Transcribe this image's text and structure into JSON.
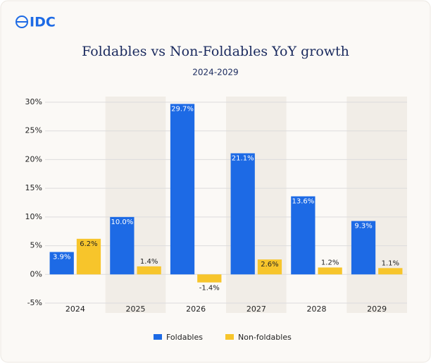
{
  "logo": "IDC",
  "chart_data": {
    "type": "bar",
    "title": "Foldables vs Non-Foldables YoY growth",
    "subtitle": "2024-2029",
    "categories": [
      "2024",
      "2025",
      "2026",
      "2027",
      "2028",
      "2029"
    ],
    "series": [
      {
        "name": "Foldables",
        "color": "#1d6ae5",
        "values": [
          3.9,
          10.0,
          29.7,
          21.1,
          13.6,
          9.3
        ],
        "value_labels": [
          "3.9%",
          "10.0%",
          "29.7%",
          "21.1%",
          "13.6%",
          "9.3%"
        ]
      },
      {
        "name": "Non-foldables",
        "color": "#f7c52b",
        "values": [
          6.2,
          1.4,
          -1.4,
          2.6,
          1.2,
          1.1
        ],
        "value_labels": [
          "6.2%",
          "1.4%",
          "-1.4%",
          "2.6%",
          "1.2%",
          "1.1%"
        ]
      }
    ],
    "ylim": [
      -5,
      30
    ],
    "yticks": [
      {
        "value": -5,
        "label": "-5%"
      },
      {
        "value": 0,
        "label": "0%"
      },
      {
        "value": 5,
        "label": "5%"
      },
      {
        "value": 10,
        "label": "10%"
      },
      {
        "value": 15,
        "label": "15%"
      },
      {
        "value": 20,
        "label": "20%"
      },
      {
        "value": 25,
        "label": "25%"
      },
      {
        "value": 30,
        "label": "30%"
      }
    ],
    "grid": true,
    "legend": "bottom"
  }
}
